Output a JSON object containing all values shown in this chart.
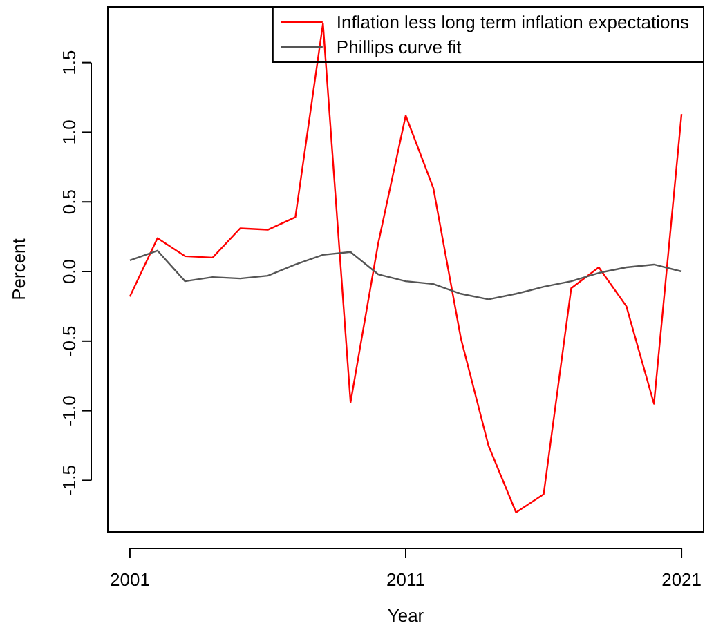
{
  "chart_data": {
    "type": "line",
    "xlabel": "Year",
    "ylabel": "Percent",
    "x": [
      2001,
      2002,
      2003,
      2004,
      2005,
      2006,
      2007,
      2008,
      2009,
      2010,
      2011,
      2012,
      2013,
      2014,
      2015,
      2016,
      2017,
      2018,
      2019,
      2020,
      2021
    ],
    "series": [
      {
        "name": "Inflation less long term inflation expectations",
        "color": "#ff0000",
        "values": [
          -0.18,
          0.24,
          0.11,
          0.1,
          0.31,
          0.3,
          0.39,
          1.78,
          -0.94,
          0.2,
          1.12,
          0.6,
          -0.48,
          -1.25,
          -1.73,
          -1.6,
          -0.12,
          0.03,
          -0.25,
          -0.95,
          1.13
        ]
      },
      {
        "name": "Phillips curve fit",
        "color": "#555555",
        "values": [
          0.08,
          0.15,
          -0.07,
          -0.04,
          -0.05,
          -0.03,
          0.05,
          0.12,
          0.14,
          -0.02,
          -0.07,
          -0.09,
          -0.16,
          -0.2,
          -0.16,
          -0.11,
          -0.07,
          -0.01,
          0.03,
          0.05,
          0.0
        ]
      }
    ],
    "xlim": [
      2000.2,
      2021.8
    ],
    "xticks": [
      2001,
      2011,
      2021
    ],
    "ylim": [
      -1.87,
      1.9
    ],
    "yticks": [
      {
        "value": -1.5,
        "label": "-1.5"
      },
      {
        "value": -1,
        "label": "-1.0"
      },
      {
        "value": -0.5,
        "label": "-0.5"
      },
      {
        "value": 0,
        "label": "0.0"
      },
      {
        "value": 0.5,
        "label": "0.5"
      },
      {
        "value": 1,
        "label": "1.0"
      },
      {
        "value": 1.5,
        "label": "1.5"
      }
    ],
    "legend": "top right",
    "grid": false,
    "line_style": "solid",
    "marker": "none"
  }
}
